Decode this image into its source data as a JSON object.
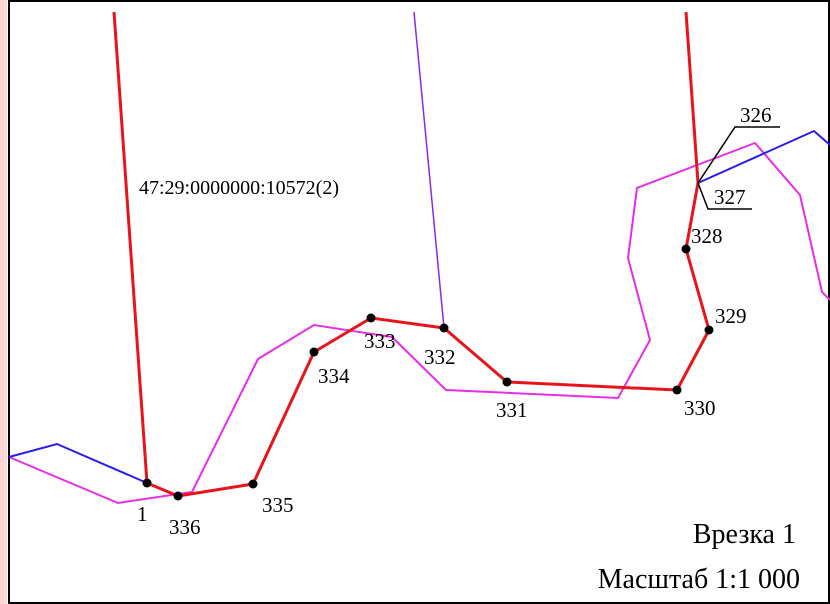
{
  "map": {
    "cadastral_number": "47:29:0000000:10572(2)",
    "inset_title": "Врезка 1",
    "scale_label": "Масштаб 1:1 000",
    "colors": {
      "boundary_red": "#e8141c",
      "neighbor_magenta": "#e62ee6",
      "blue_line": "#2a1ee6",
      "purple_line": "#8a2be2",
      "point": "#000000",
      "frame": "#000000",
      "left_edge_tint": "#ff6b6b"
    },
    "points": [
      {
        "label": "1"
      },
      {
        "label": "336"
      },
      {
        "label": "335"
      },
      {
        "label": "334"
      },
      {
        "label": "333"
      },
      {
        "label": "332"
      },
      {
        "label": "331"
      },
      {
        "label": "330"
      },
      {
        "label": "329"
      },
      {
        "label": "328"
      },
      {
        "label": "327"
      },
      {
        "label": "326"
      }
    ]
  }
}
